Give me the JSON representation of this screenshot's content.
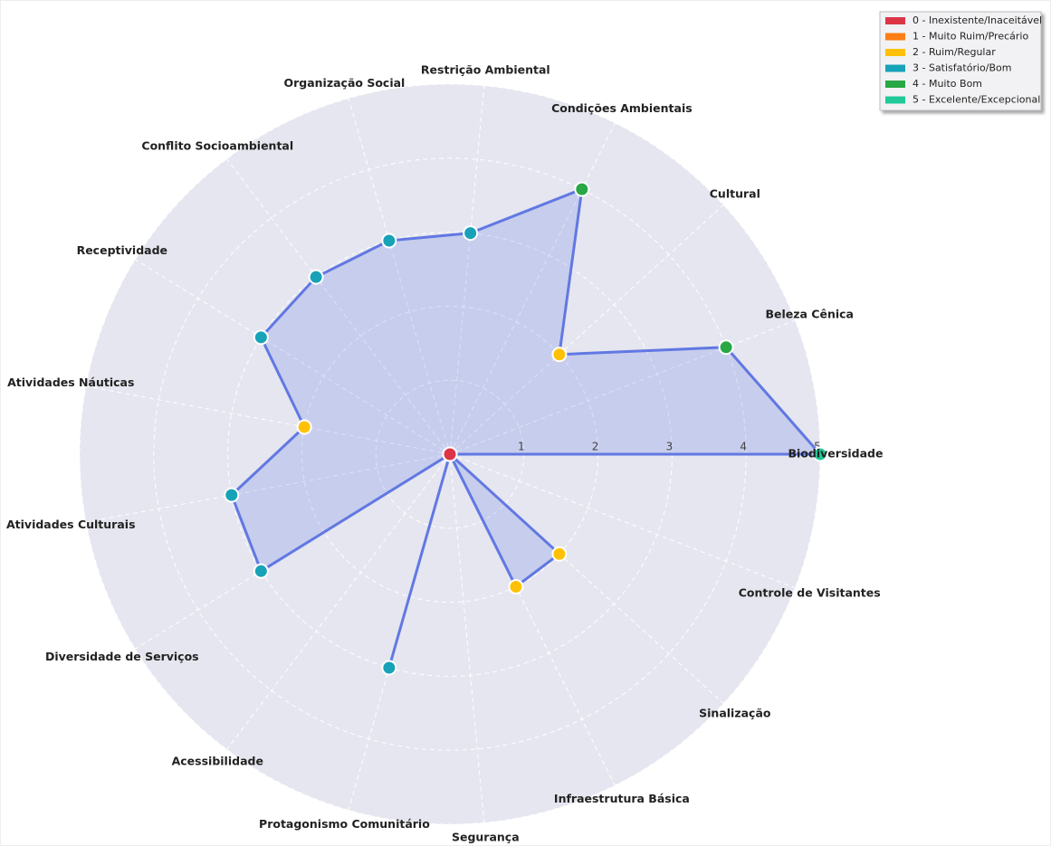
{
  "chart_data": {
    "type": "radar",
    "categories": [
      "Biodiversidade",
      "Beleza Cênica",
      "Cultural",
      "Condições Ambientais",
      "Restrição Ambiental",
      "Organização Social",
      "Conflito Socioambiental",
      "Receptividade",
      "Atividades Náuticas",
      "Atividades Culturais",
      "Diversidade de Serviços",
      "Acessibilidade",
      "Protagonismo Comunitário",
      "Segurança",
      "Infraestrutura Básica",
      "Sinalização",
      "Controle de Visitantes"
    ],
    "values": [
      5,
      4,
      2,
      4,
      3,
      3,
      3,
      3,
      2,
      3,
      3,
      0,
      3,
      0,
      2,
      2,
      0
    ],
    "color": "#6178e3",
    "rlim": [
      0,
      5
    ],
    "rticks": [
      1,
      2,
      3,
      4,
      5
    ],
    "grid": true,
    "legend_position": "upper right",
    "levels": [
      {
        "value": 0,
        "label": "0 - Inexistente/Inaceitável",
        "color": "#dc3545"
      },
      {
        "value": 1,
        "label": "1 - Muito Ruim/Precário",
        "color": "#fd7e14"
      },
      {
        "value": 2,
        "label": "2 - Ruim/Regular",
        "color": "#ffc107"
      },
      {
        "value": 3,
        "label": "3 - Satisfatório/Bom",
        "color": "#17a2b8"
      },
      {
        "value": 4,
        "label": "4 - Muito Bom",
        "color": "#28a745"
      },
      {
        "value": 5,
        "label": "5 - Excelente/Excepcional",
        "color": "#20c997"
      }
    ]
  }
}
